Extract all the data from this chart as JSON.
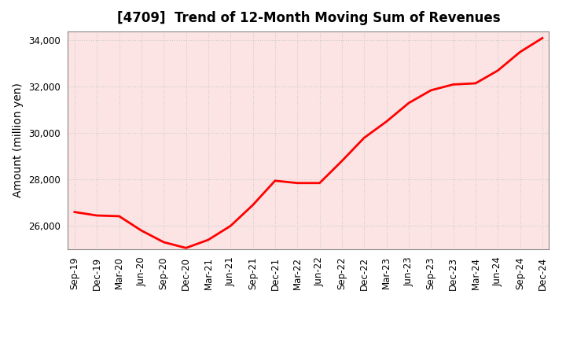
{
  "title": "[4709]  Trend of 12-Month Moving Sum of Revenues",
  "ylabel": "Amount (million yen)",
  "x_labels": [
    "Sep-19",
    "Dec-19",
    "Mar-20",
    "Jun-20",
    "Sep-20",
    "Dec-20",
    "Mar-21",
    "Jun-21",
    "Sep-21",
    "Dec-21",
    "Mar-22",
    "Jun-22",
    "Sep-22",
    "Dec-22",
    "Mar-23",
    "Jun-23",
    "Sep-23",
    "Dec-23",
    "Mar-24",
    "Jun-24",
    "Sep-24",
    "Dec-24"
  ],
  "values": [
    26600,
    26450,
    26420,
    25800,
    25300,
    25050,
    25400,
    26000,
    26900,
    27950,
    27850,
    27850,
    28800,
    29800,
    30500,
    31300,
    31850,
    32100,
    32150,
    32700,
    33500,
    34100
  ],
  "line_color": "#ff0000",
  "line_width": 2.0,
  "bg_color": "#ffffff",
  "plot_bg_color": "#fce4e4",
  "grid_color": "#cccccc",
  "ylim_min": 25000,
  "ylim_max": 34400,
  "yticks": [
    26000,
    28000,
    30000,
    32000,
    34000
  ],
  "title_fontsize": 12,
  "axis_label_fontsize": 10,
  "tick_fontsize": 8.5
}
